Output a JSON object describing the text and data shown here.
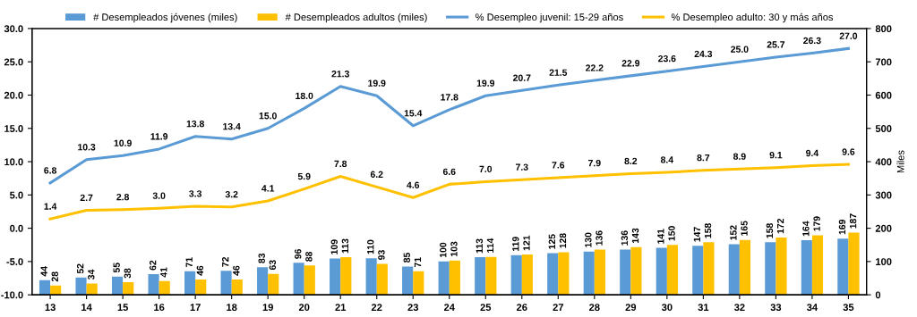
{
  "chart_data": {
    "type": "bar",
    "categories": [
      "13",
      "14",
      "15",
      "16",
      "17",
      "18",
      "19",
      "20",
      "21",
      "22",
      "23",
      "24",
      "25",
      "26",
      "27",
      "28",
      "29",
      "30",
      "31",
      "32",
      "33",
      "34",
      "35"
    ],
    "series": [
      {
        "name": "# Desempleados jóvenes (miles)",
        "axis": "y2",
        "color": "#5b9bd5",
        "values": [
          44,
          52,
          55,
          62,
          71,
          72,
          83,
          96,
          109,
          110,
          85,
          100,
          113,
          119,
          125,
          130,
          136,
          141,
          147,
          152,
          158,
          164,
          169
        ]
      },
      {
        "name": "# Desempleados adultos (miles)",
        "axis": "y2",
        "color": "#ffc000",
        "values": [
          28,
          34,
          38,
          41,
          46,
          46,
          63,
          88,
          113,
          93,
          71,
          103,
          114,
          121,
          128,
          136,
          143,
          150,
          158,
          165,
          172,
          179,
          187
        ]
      },
      {
        "name": "% Desempleo juvenil: 15-29 años",
        "type": "line",
        "axis": "y",
        "color": "#5b9bd5",
        "values": [
          6.8,
          10.3,
          10.9,
          11.9,
          13.8,
          13.4,
          15.0,
          18.0,
          21.3,
          19.9,
          15.4,
          17.8,
          19.9,
          20.7,
          21.5,
          22.2,
          22.9,
          23.6,
          24.3,
          25.0,
          25.7,
          26.3,
          27.0
        ],
        "value_labels": [
          "6.8",
          "10.3",
          "10.9",
          "11.9",
          "13.8",
          "13.4",
          "15.0",
          "18.0",
          "21.3",
          "19.9",
          "15.4",
          "17.8",
          "19.9",
          "20.7",
          "21.5",
          "22.2",
          "22.9",
          "23.6",
          "24.3",
          "25.0",
          "25.7",
          "26.3",
          "27.0"
        ]
      },
      {
        "name": "% Desempleo adulto: 30 y más años",
        "type": "line",
        "axis": "y",
        "color": "#ffc000",
        "values": [
          1.4,
          2.7,
          2.8,
          3.0,
          3.3,
          3.2,
          4.1,
          5.9,
          7.8,
          6.2,
          4.6,
          6.6,
          7.0,
          7.3,
          7.6,
          7.9,
          8.2,
          8.4,
          8.7,
          8.9,
          9.1,
          9.4,
          9.6
        ],
        "value_labels": [
          "1.4",
          "2.7",
          "2.8",
          "3.0",
          "3.3",
          "3.2",
          "4.1",
          "5.9",
          "7.8",
          "6.2",
          "4.6",
          "6.6",
          "7.0",
          "7.3",
          "7.6",
          "7.9",
          "8.2",
          "8.4",
          "8.7",
          "8.9",
          "9.1",
          "9.4",
          "9.6"
        ]
      }
    ],
    "ylim": [
      -10,
      30
    ],
    "yticks": [
      {
        "value": -10,
        "label": "-10.0"
      },
      {
        "value": -5,
        "label": "-5.0"
      },
      {
        "value": 0,
        "label": "0.0"
      },
      {
        "value": 5,
        "label": "5.0"
      },
      {
        "value": 10,
        "label": "10.0"
      },
      {
        "value": 15,
        "label": "15.0"
      },
      {
        "value": 20,
        "label": "20.0"
      },
      {
        "value": 25,
        "label": "25.0"
      },
      {
        "value": 30,
        "label": "30.0"
      }
    ],
    "y2lim": [
      0,
      800
    ],
    "y2ticks": [
      0,
      100,
      200,
      300,
      400,
      500,
      600,
      700,
      800
    ],
    "y2label": "Miles",
    "data_labels": true,
    "grid": false,
    "legend": "top",
    "marker": "none",
    "line_style": "solid"
  }
}
